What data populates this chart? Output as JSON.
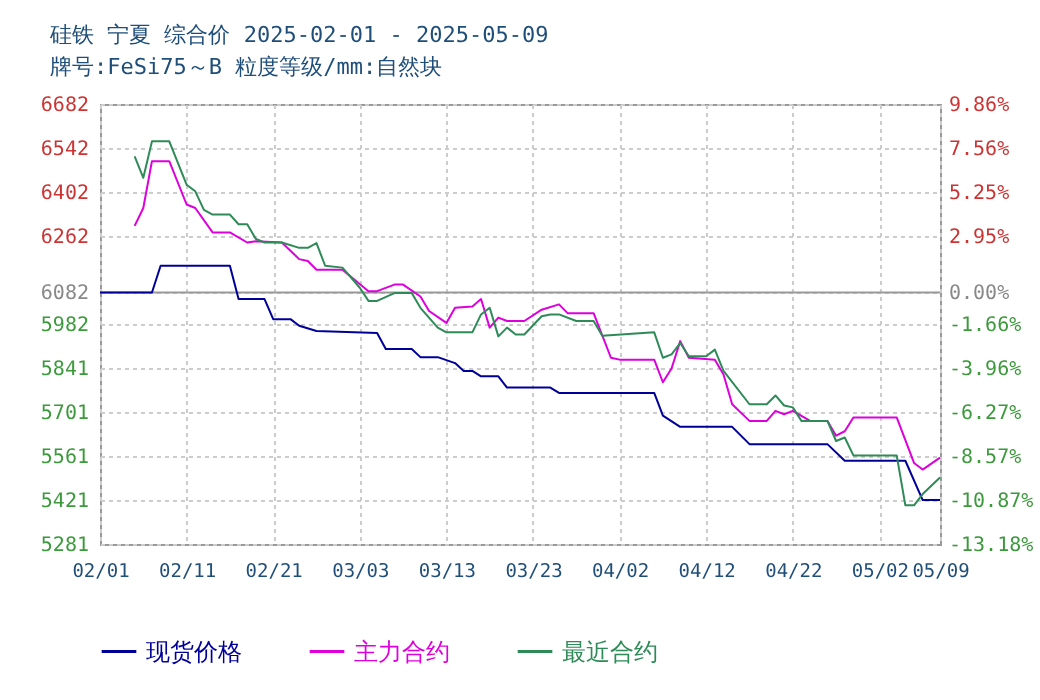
{
  "chart_data": {
    "type": "line",
    "title": "硅铁 宁夏 综合价 2025-02-01 - 2025-05-09",
    "subtitle": "牌号:FeSi75～B 粒度等级/mm:自然块",
    "xlim": [
      "2025-02-01",
      "2025-05-09"
    ],
    "xticks": [
      {
        "value": "2025-02-01",
        "label": "02/01"
      },
      {
        "value": "2025-02-11",
        "label": "02/11"
      },
      {
        "value": "2025-02-21",
        "label": "02/21"
      },
      {
        "value": "2025-03-03",
        "label": "03/03"
      },
      {
        "value": "2025-03-13",
        "label": "03/13"
      },
      {
        "value": "2025-03-23",
        "label": "03/23"
      },
      {
        "value": "2025-04-02",
        "label": "04/02"
      },
      {
        "value": "2025-04-12",
        "label": "04/12"
      },
      {
        "value": "2025-04-22",
        "label": "04/22"
      },
      {
        "value": "2025-05-02",
        "label": "05/02"
      },
      {
        "value": "2025-05-09",
        "label": "05/09"
      }
    ],
    "ylim": [
      5281,
      6682
    ],
    "yticks": [
      5281,
      5421,
      5561,
      5701,
      5841,
      5982,
      6082,
      6262,
      6402,
      6542,
      6682
    ],
    "y2lim": [
      -13.18,
      9.86
    ],
    "y2ticks": [
      {
        "value": -13.18,
        "label": "-13.18%"
      },
      {
        "value": -10.87,
        "label": "-10.87%"
      },
      {
        "value": -8.57,
        "label": "-8.57%"
      },
      {
        "value": -6.27,
        "label": "-6.27%"
      },
      {
        "value": -3.96,
        "label": "-3.96%"
      },
      {
        "value": -1.66,
        "label": "-1.66%"
      },
      {
        "value": 0,
        "label": "0.00%"
      },
      {
        "value": 2.95,
        "label": "2.95%"
      },
      {
        "value": 5.25,
        "label": "5.25%"
      },
      {
        "value": 7.56,
        "label": "7.56%"
      },
      {
        "value": 9.86,
        "label": "9.86%"
      }
    ],
    "grid": true,
    "legend": "bottom",
    "ref_lines": [
      {
        "axis": "y",
        "value": 6082,
        "color": "#999999"
      }
    ],
    "series": [
      {
        "name": "现货价格",
        "color": "#000099",
        "x": [
          "2025-02-01",
          "2025-02-07",
          "2025-02-08",
          "2025-02-16",
          "2025-02-17",
          "2025-02-20",
          "2025-02-21",
          "2025-02-23",
          "2025-02-24",
          "2025-02-26",
          "2025-03-05",
          "2025-03-06",
          "2025-03-09",
          "2025-03-10",
          "2025-03-12",
          "2025-03-14",
          "2025-03-15",
          "2025-03-16",
          "2025-03-17",
          "2025-03-19",
          "2025-03-20",
          "2025-03-25",
          "2025-03-26",
          "2025-04-06",
          "2025-04-07",
          "2025-04-09",
          "2025-04-15",
          "2025-04-17",
          "2025-04-26",
          "2025-04-28",
          "2025-05-05",
          "2025-05-07",
          "2025-05-09"
        ],
        "values": [
          6082,
          6082,
          6167,
          6167,
          6061,
          6061,
          5997,
          5997,
          5976,
          5959,
          5953,
          5902,
          5902,
          5876,
          5876,
          5857,
          5832,
          5832,
          5815,
          5815,
          5779,
          5779,
          5762,
          5762,
          5690,
          5654,
          5654,
          5599,
          5599,
          5546,
          5546,
          5421,
          5421
        ]
      },
      {
        "name": "主力合约",
        "color": "#dd00dd",
        "x": [
          "2025-02-05",
          "2025-02-06",
          "2025-02-07",
          "2025-02-09",
          "2025-02-11",
          "2025-02-12",
          "2025-02-14",
          "2025-02-16",
          "2025-02-18",
          "2025-02-19",
          "2025-02-22",
          "2025-02-24",
          "2025-02-25",
          "2025-02-26",
          "2025-03-01",
          "2025-03-04",
          "2025-03-05",
          "2025-03-07",
          "2025-03-08",
          "2025-03-10",
          "2025-03-11",
          "2025-03-13",
          "2025-03-14",
          "2025-03-16",
          "2025-03-17",
          "2025-03-18",
          "2025-03-19",
          "2025-03-20",
          "2025-03-22",
          "2025-03-24",
          "2025-03-26",
          "2025-03-27",
          "2025-03-30",
          "2025-04-01",
          "2025-04-02",
          "2025-04-06",
          "2025-04-07",
          "2025-04-08",
          "2025-04-09",
          "2025-04-10",
          "2025-04-13",
          "2025-04-14",
          "2025-04-15",
          "2025-04-17",
          "2025-04-19",
          "2025-04-20",
          "2025-04-21",
          "2025-04-22",
          "2025-04-24",
          "2025-04-26",
          "2025-04-27",
          "2025-04-28",
          "2025-04-29",
          "2025-05-04",
          "2025-05-06",
          "2025-05-07",
          "2025-05-09"
        ],
        "values": [
          6294,
          6351,
          6500,
          6500,
          6362,
          6351,
          6273,
          6273,
          6241,
          6245,
          6241,
          6188,
          6182,
          6154,
          6154,
          6086,
          6086,
          6107,
          6107,
          6069,
          6023,
          5985,
          6033,
          6037,
          6061,
          5970,
          6002,
          5991,
          5991,
          6027,
          6044,
          6016,
          6016,
          5874,
          5868,
          5868,
          5796,
          5840,
          5927,
          5874,
          5868,
          5821,
          5726,
          5673,
          5673,
          5705,
          5694,
          5705,
          5673,
          5673,
          5626,
          5640,
          5684,
          5684,
          5539,
          5518,
          5556
        ]
      },
      {
        "name": "最近合约",
        "color": "#2e8b57",
        "x": [
          "2025-02-05",
          "2025-02-06",
          "2025-02-07",
          "2025-02-09",
          "2025-02-11",
          "2025-02-12",
          "2025-02-13",
          "2025-02-14",
          "2025-02-16",
          "2025-02-17",
          "2025-02-18",
          "2025-02-19",
          "2025-02-20",
          "2025-02-22",
          "2025-02-24",
          "2025-02-25",
          "2025-02-26",
          "2025-02-27",
          "2025-03-01",
          "2025-03-03",
          "2025-03-04",
          "2025-03-05",
          "2025-03-07",
          "2025-03-09",
          "2025-03-10",
          "2025-03-12",
          "2025-03-13",
          "2025-03-16",
          "2025-03-17",
          "2025-03-18",
          "2025-03-19",
          "2025-03-20",
          "2025-03-21",
          "2025-03-22",
          "2025-03-24",
          "2025-03-25",
          "2025-03-26",
          "2025-03-28",
          "2025-03-30",
          "2025-03-31",
          "2025-04-06",
          "2025-04-07",
          "2025-04-08",
          "2025-04-09",
          "2025-04-10",
          "2025-04-12",
          "2025-04-13",
          "2025-04-14",
          "2025-04-17",
          "2025-04-19",
          "2025-04-20",
          "2025-04-21",
          "2025-04-22",
          "2025-04-23",
          "2025-04-26",
          "2025-04-27",
          "2025-04-28",
          "2025-04-29",
          "2025-05-04",
          "2025-05-05",
          "2025-05-06",
          "2025-05-07",
          "2025-05-09"
        ],
        "values": [
          6515,
          6447,
          6563,
          6563,
          6425,
          6404,
          6345,
          6330,
          6330,
          6299,
          6299,
          6252,
          6241,
          6241,
          6224,
          6224,
          6239,
          6167,
          6161,
          6097,
          6055,
          6055,
          6080,
          6080,
          6033,
          5970,
          5955,
          5955,
          6012,
          6033,
          5942,
          5970,
          5948,
          5948,
          6006,
          6012,
          6012,
          5991,
          5991,
          5944,
          5955,
          5874,
          5885,
          5921,
          5879,
          5879,
          5900,
          5832,
          5726,
          5726,
          5754,
          5722,
          5716,
          5673,
          5673,
          5609,
          5620,
          5563,
          5563,
          5404,
          5404,
          5440,
          5493
        ]
      }
    ]
  }
}
